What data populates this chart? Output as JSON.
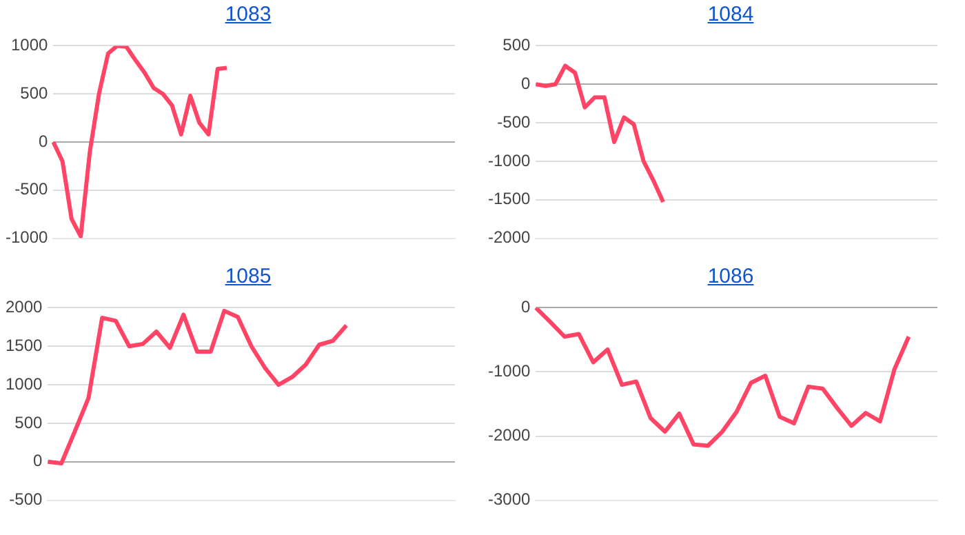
{
  "chart_data": [
    {
      "type": "line",
      "title": "1083",
      "categories": [
        null,
        null,
        null,
        null,
        null,
        null,
        null,
        null,
        null,
        null,
        null,
        null,
        null,
        null,
        null,
        null,
        null,
        null,
        null,
        null,
        null,
        null,
        null,
        null,
        null,
        null,
        null,
        null,
        null,
        null,
        null,
        null,
        null,
        null,
        null,
        null,
        null,
        null,
        null,
        null,
        null,
        null,
        null,
        null,
        null
      ],
      "series": [
        {
          "color": "#ff4466",
          "values": [
            0,
            -200,
            -800,
            -980,
            -100,
            500,
            920,
            1000,
            990,
            850,
            720,
            560,
            500,
            380,
            80,
            480,
            200,
            80,
            760,
            770,
            null,
            null,
            null,
            null,
            null,
            null,
            null,
            null,
            null,
            null,
            null,
            null,
            null,
            null,
            null,
            null,
            null,
            null,
            null,
            null,
            null,
            null,
            null,
            null,
            null
          ]
        }
      ],
      "ylim": [
        -1000,
        1000
      ],
      "yticks": [
        -1000,
        -500,
        0,
        500,
        1000
      ],
      "grid": "y",
      "tick_labels": "y",
      "marker": "none",
      "line_style": "solid"
    },
    {
      "type": "line",
      "title": "1084",
      "categories": [
        null,
        null,
        null,
        null,
        null,
        null,
        null,
        null,
        null,
        null,
        null,
        null,
        null,
        null,
        null,
        null,
        null,
        null,
        null,
        null,
        null,
        null,
        null,
        null,
        null,
        null,
        null,
        null,
        null,
        null,
        null,
        null,
        null,
        null,
        null,
        null,
        null,
        null,
        null,
        null,
        null,
        null
      ],
      "series": [
        {
          "color": "#ff4466",
          "values": [
            0,
            -20,
            0,
            240,
            150,
            -300,
            -170,
            -170,
            -750,
            -430,
            -520,
            -1000,
            -1250,
            -1530,
            null,
            null,
            null,
            null,
            null,
            null,
            null,
            null,
            null,
            null,
            null,
            null,
            null,
            null,
            null,
            null,
            null,
            null,
            null,
            null,
            null,
            null,
            null,
            null,
            null,
            null,
            null,
            null
          ]
        }
      ],
      "ylim": [
        -2000,
        500
      ],
      "yticks": [
        -2000,
        -1500,
        -1000,
        -500,
        0,
        500
      ],
      "grid": "y",
      "tick_labels": "y",
      "marker": "none",
      "line_style": "solid"
    },
    {
      "type": "line",
      "title": "1085",
      "categories": [
        null,
        null,
        null,
        null,
        null,
        null,
        null,
        null,
        null,
        null,
        null,
        null,
        null,
        null,
        null,
        null,
        null,
        null,
        null,
        null,
        null,
        null,
        null,
        null,
        null,
        null,
        null,
        null,
        null,
        null,
        null
      ],
      "series": [
        {
          "color": "#ff4466",
          "values": [
            0,
            -20,
            400,
            830,
            1870,
            1830,
            1500,
            1530,
            1690,
            1480,
            1910,
            1430,
            1430,
            1960,
            1880,
            1500,
            1220,
            1000,
            1100,
            1260,
            1520,
            1570,
            1770,
            null,
            null,
            null,
            null,
            null,
            null,
            null,
            null
          ]
        }
      ],
      "ylim": [
        -500,
        2000
      ],
      "yticks": [
        -500,
        0,
        500,
        1000,
        1500,
        2000
      ],
      "grid": "y",
      "tick_labels": "y",
      "marker": "none",
      "line_style": "solid"
    },
    {
      "type": "line",
      "title": "1086",
      "categories": [
        null,
        null,
        null,
        null,
        null,
        null,
        null,
        null,
        null,
        null,
        null,
        null,
        null,
        null,
        null,
        null,
        null,
        null,
        null,
        null,
        null,
        null,
        null,
        null,
        null,
        null,
        null,
        null,
        null
      ],
      "series": [
        {
          "color": "#ff4466",
          "values": [
            0,
            -220,
            -450,
            -410,
            -850,
            -650,
            -1200,
            -1150,
            -1720,
            -1930,
            -1650,
            -2130,
            -2150,
            -1930,
            -1620,
            -1170,
            -1060,
            -1700,
            -1800,
            -1230,
            -1260,
            -1560,
            -1840,
            -1640,
            -1770,
            -960,
            -450,
            null,
            null
          ]
        }
      ],
      "ylim": [
        -3000,
        0
      ],
      "yticks": [
        -3000,
        -2000,
        -1000,
        0
      ],
      "grid": "y",
      "tick_labels": "y",
      "marker": "none",
      "line_style": "solid"
    }
  ]
}
